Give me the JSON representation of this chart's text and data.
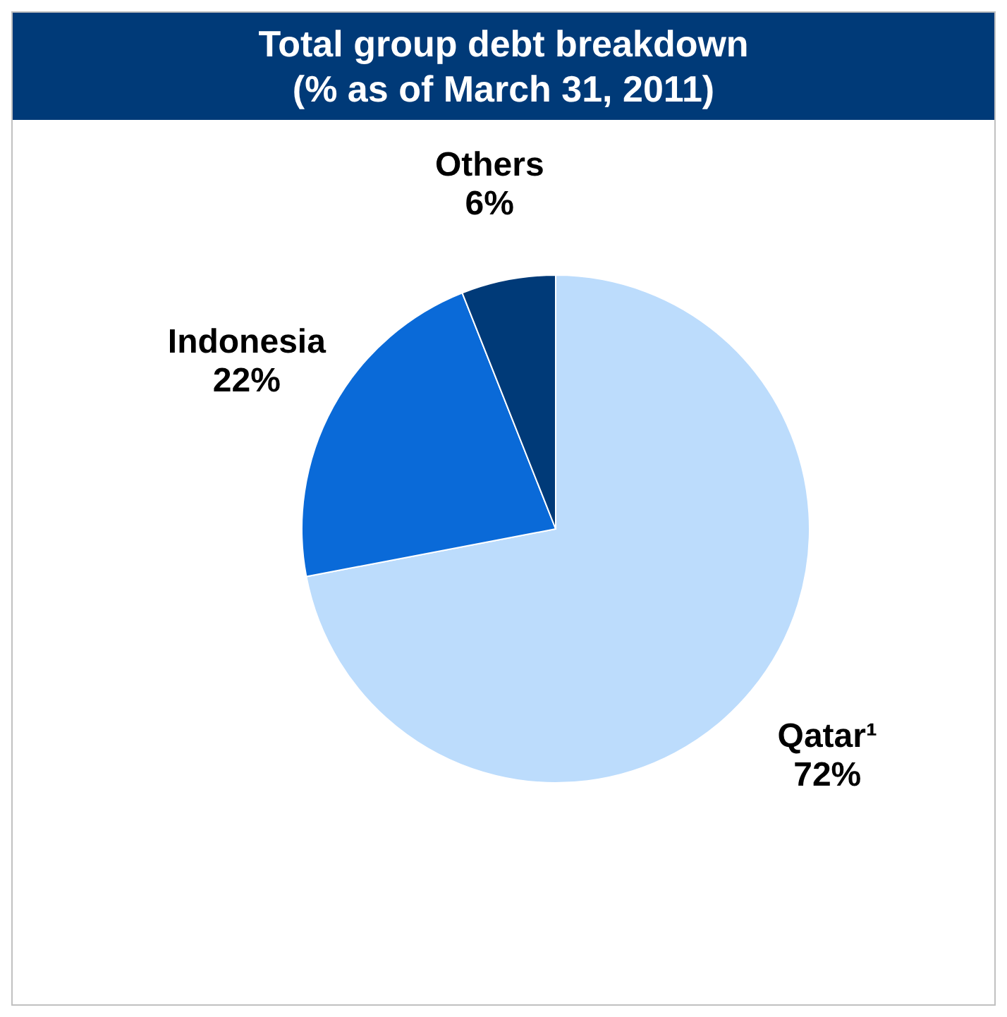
{
  "chart_data": {
    "type": "pie",
    "title": "Total group debt breakdown\n(% as of March 31, 2011)",
    "categories": [
      "Qatar¹",
      "Indonesia",
      "Others"
    ],
    "values": [
      72,
      22,
      6
    ],
    "colors": [
      "#bcdcfc",
      "#0a6ad8",
      "#003a78"
    ],
    "value_labels": [
      "72%",
      "22%",
      "6%"
    ],
    "legend": false
  }
}
